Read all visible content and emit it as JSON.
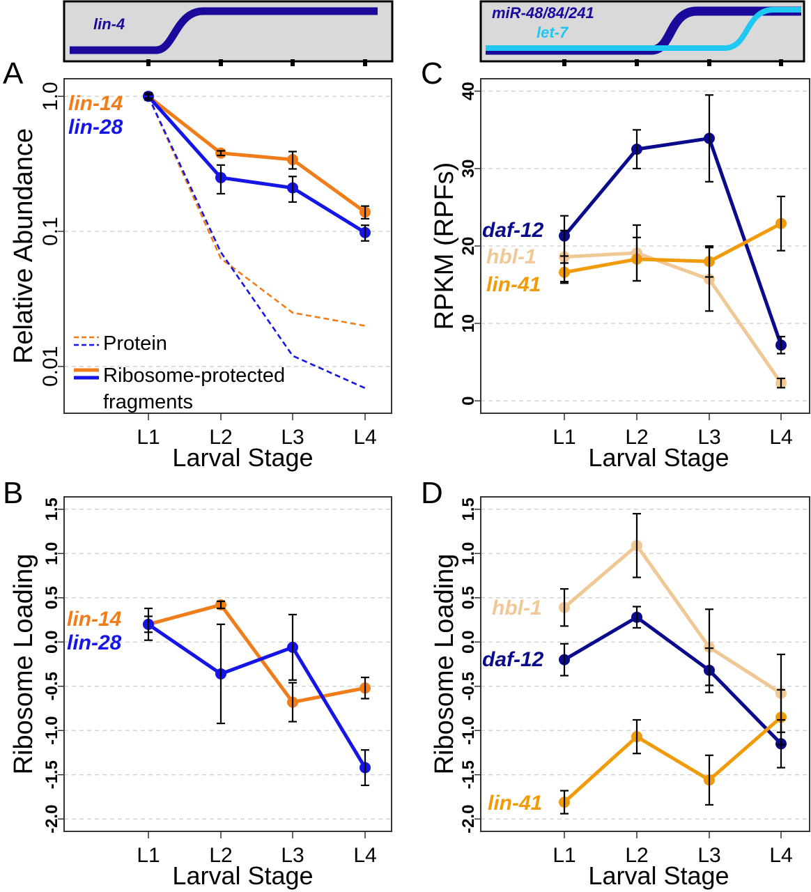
{
  "chart_data": [
    {
      "panel": "A",
      "type": "line",
      "yscale": "log",
      "categories": [
        "L1",
        "L2",
        "L3",
        "L4"
      ],
      "xlabel": "Larval Stage",
      "ylabel": "Relative Abundance",
      "yticks": [
        1.0,
        0.1,
        0.01
      ],
      "ytick_labels": [
        "1.0",
        "0.1",
        "0.01"
      ],
      "ylim": [
        0.0045,
        1.35
      ],
      "grid": true,
      "timeline": {
        "labels": [
          {
            "text": "lin-4",
            "color": "#1a0a9c"
          }
        ]
      },
      "legend": {
        "placement": "bottom-left",
        "entries": [
          {
            "label": "Protein",
            "style": "dashed"
          },
          {
            "label": "Ribosome-protected fragments",
            "style": "solid"
          }
        ]
      },
      "series": [
        {
          "name": "lin-14",
          "kind": "rpf",
          "color": "#f07d1a",
          "values": [
            1.0,
            0.38,
            0.34,
            0.139
          ],
          "err": [
            0.03,
            0.015,
            0.05,
            0.015
          ]
        },
        {
          "name": "lin-28",
          "kind": "rpf",
          "color": "#1515e6",
          "values": [
            1.0,
            0.25,
            0.21,
            0.098
          ],
          "err": [
            0.06,
            0.06,
            0.045,
            0.013
          ]
        },
        {
          "name": "lin-14",
          "kind": "protein",
          "color": "#f07d1a",
          "values": [
            1.0,
            0.063,
            0.025,
            0.02
          ]
        },
        {
          "name": "lin-28",
          "kind": "protein",
          "color": "#1515e6",
          "values": [
            1.0,
            0.07,
            0.012,
            0.0069
          ]
        }
      ]
    },
    {
      "panel": "C",
      "type": "line",
      "categories": [
        "L1",
        "L2",
        "L3",
        "L4"
      ],
      "xlabel": "Larval Stage",
      "ylabel": "RPKM (RPFs)",
      "yticks": [
        0,
        10,
        20,
        30,
        40
      ],
      "ytick_labels": [
        "0",
        "10",
        "20",
        "30",
        "40"
      ],
      "ylim": [
        -1.6,
        41.6
      ],
      "grid": true,
      "timeline": {
        "labels": [
          {
            "text": "miR-48/84/241",
            "color": "#1a0a9c"
          },
          {
            "text": "let-7",
            "color": "#1ec8f0"
          }
        ]
      },
      "series": [
        {
          "name": "daf-12",
          "color": "#0a0a8c",
          "values": [
            21.3,
            32.5,
            33.9,
            7.2
          ],
          "err": [
            2.6,
            2.5,
            5.6,
            1.1
          ]
        },
        {
          "name": "hbl-1",
          "color": "#f0c896",
          "values": [
            18.6,
            19.1,
            15.7,
            2.3
          ],
          "err": [
            3.4,
            3.6,
            4.1,
            0.6
          ]
        },
        {
          "name": "lin-41",
          "color": "#f09c0a",
          "values": [
            16.6,
            18.3,
            18.0,
            22.9
          ],
          "err": [
            1.2,
            2.8,
            2.0,
            3.5
          ]
        }
      ]
    },
    {
      "panel": "B",
      "type": "line",
      "categories": [
        "L1",
        "L2",
        "L3",
        "L4"
      ],
      "xlabel": "Larval Stage",
      "ylabel": "Ribosome Loading",
      "yticks": [
        1.5,
        1.0,
        0.5,
        0.0,
        -0.5,
        -1.0,
        -1.5,
        -2.0
      ],
      "ytick_labels": [
        "1.5",
        "1.0",
        "0.5",
        "0.0",
        "-0.5",
        "-1.0",
        "-1.5",
        "-2.0"
      ],
      "ylim": [
        -2.14,
        1.64
      ],
      "grid": true,
      "series": [
        {
          "name": "lin-14",
          "color": "#f07d1a",
          "values": [
            0.2,
            0.42,
            -0.68,
            -0.52
          ],
          "err": [
            0.09,
            0.04,
            0.22,
            0.12
          ]
        },
        {
          "name": "lin-28",
          "color": "#1515e6",
          "values": [
            0.2,
            -0.36,
            -0.06,
            -1.42
          ],
          "err": [
            0.18,
            0.56,
            0.37,
            0.2
          ]
        }
      ]
    },
    {
      "panel": "D",
      "type": "line",
      "categories": [
        "L1",
        "L2",
        "L3",
        "L4"
      ],
      "xlabel": "Larval Stage",
      "ylabel": "Ribosome Loading",
      "yticks": [
        1.5,
        1.0,
        0.5,
        0.0,
        -0.5,
        -1.0,
        -1.5,
        -2.0
      ],
      "ytick_labels": [
        "1.5",
        "1.0",
        "0.5",
        "0.0",
        "-0.5",
        "-1.0",
        "-1.5",
        "-2.0"
      ],
      "ylim": [
        -2.14,
        1.64
      ],
      "grid": true,
      "series": [
        {
          "name": "hbl-1",
          "color": "#f0c896",
          "values": [
            0.39,
            1.09,
            -0.06,
            -0.58
          ],
          "err": [
            0.21,
            0.36,
            0.43,
            0.44
          ]
        },
        {
          "name": "daf-12",
          "color": "#0a0a8c",
          "values": [
            -0.2,
            0.28,
            -0.32,
            -1.15
          ],
          "err": [
            0.18,
            0.12,
            0.25,
            0.27
          ]
        },
        {
          "name": "lin-41",
          "color": "#f09c0a",
          "values": [
            -1.81,
            -1.07,
            -1.56,
            -0.85
          ],
          "err": [
            0.13,
            0.19,
            0.28,
            0.31
          ]
        }
      ]
    }
  ]
}
